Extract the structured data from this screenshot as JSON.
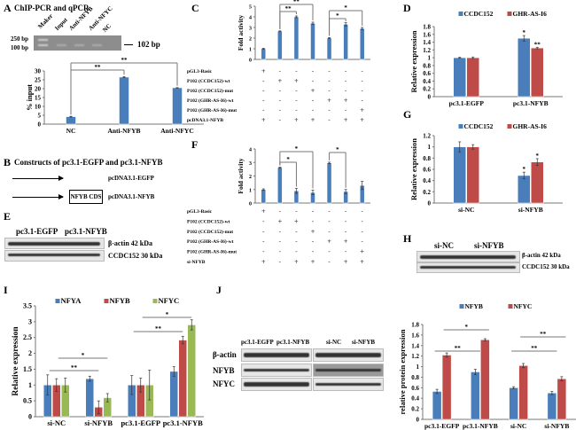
{
  "colors": {
    "blue": "#4a7ebb",
    "red": "#be4b48",
    "green": "#98b954"
  },
  "panels": {
    "A": {
      "letter": "A",
      "title": "ChIP-PCR and qPCR",
      "gel_lanes": [
        "Maker",
        "Input",
        "Anti-NFYB",
        "Anti-NFYC",
        "NC"
      ],
      "marker_250": "250 bp",
      "marker_100": "100 bp",
      "product": "102 bp"
    },
    "B": {
      "letter": "B",
      "title": "Constructs of pc3.1-EGFP and pc3.1-NFYB",
      "construct1": "pcDNA3.1-EGFP",
      "construct2": "pcDNA3.1-NFYB",
      "cds": "NFYB CDS"
    },
    "C": {
      "letter": "C"
    },
    "D": {
      "letter": "D"
    },
    "E": {
      "letter": "E",
      "group1": "pc3.1-EGFP",
      "group2": "pc3.1-NFYB",
      "row1": "β-actin 42 kDa",
      "row2": "CCDC152 30 kDa"
    },
    "F": {
      "letter": "F"
    },
    "G": {
      "letter": "G"
    },
    "H": {
      "letter": "H",
      "group1": "si-NC",
      "group2": "si-NFYB",
      "row1": "β-actin 42 kDa",
      "row2": "CCDC152 30 kDa"
    },
    "I": {
      "letter": "I"
    },
    "J": {
      "letter": "J",
      "group1": "pc3.1-EGFP",
      "group2": "pc3.1-NFYB",
      "group3": "si-NC",
      "group4": "si-NFYB",
      "row1": "β-actin",
      "row2": "NFYB",
      "row3": "NFYC"
    }
  },
  "chart_data": [
    {
      "id": "A",
      "type": "bar",
      "title": "",
      "xlabel": "",
      "ylabel": "% input",
      "ylim": [
        0,
        30
      ],
      "ystep": 5,
      "categories": [
        "NC",
        "Anti-NFYB",
        "Anti-NFYC"
      ],
      "series": [
        {
          "name": "",
          "color": "#4a7ebb",
          "values": [
            4.2,
            26.5,
            20.5
          ],
          "errors": [
            0.2,
            0.3,
            0.1
          ]
        }
      ],
      "significance": [
        {
          "from": 0,
          "to": 1,
          "label": "**"
        },
        {
          "from": 0,
          "to": 2,
          "label": "**"
        }
      ]
    },
    {
      "id": "C",
      "type": "bar",
      "ylabel": "Fold activity",
      "ylim": [
        0,
        5
      ],
      "ystep": 1,
      "categories": [
        "1",
        "2",
        "3",
        "4",
        "5",
        "6",
        "7"
      ],
      "series": [
        {
          "name": "",
          "color": "#4a7ebb",
          "values": [
            1.0,
            2.65,
            4.0,
            3.4,
            2.0,
            3.3,
            2.9
          ],
          "errors": [
            0.05,
            0.03,
            0.08,
            0.1,
            0.05,
            0.15,
            0.1
          ]
        }
      ],
      "significance": [
        {
          "from": 1,
          "to": 2,
          "label": "**"
        },
        {
          "from": 1,
          "to": 3,
          "label": "**"
        },
        {
          "from": 4,
          "to": 5,
          "label": "*"
        },
        {
          "from": 4,
          "to": 6,
          "label": "*"
        }
      ],
      "table": [
        {
          "label": "pGL3-Basic",
          "cells": [
            "+",
            "-",
            "-",
            "-",
            "-",
            "-",
            "-"
          ]
        },
        {
          "label": "P102 (CCDC152)-wt",
          "cells": [
            "-",
            "+",
            "+",
            "-",
            "-",
            "-",
            "-"
          ]
        },
        {
          "label": "P102 (CCDC152)-mut",
          "cells": [
            "-",
            "-",
            "-",
            "+",
            "-",
            "-",
            "-"
          ]
        },
        {
          "label": "P102 (GHR-AS-I6)-wt",
          "cells": [
            "-",
            "-",
            "-",
            "-",
            "+",
            "+",
            "-"
          ]
        },
        {
          "label": "P102 (GHR-AS-I6)-mut",
          "cells": [
            "-",
            "-",
            "-",
            "-",
            "-",
            "-",
            "+"
          ]
        },
        {
          "label": "pcDNA3.1-NFYB",
          "cells": [
            "+",
            "-",
            "+",
            "+",
            "-",
            "+",
            "+"
          ]
        }
      ]
    },
    {
      "id": "F",
      "type": "bar",
      "ylabel": "Fold activity",
      "ylim": [
        0,
        4
      ],
      "ystep": 1,
      "categories": [
        "1",
        "2",
        "3",
        "4",
        "5",
        "6",
        "7"
      ],
      "series": [
        {
          "name": "",
          "color": "#4a7ebb",
          "values": [
            1.0,
            2.62,
            0.9,
            0.78,
            2.97,
            0.85,
            1.3
          ],
          "errors": [
            0.05,
            0.03,
            0.18,
            0.17,
            0.05,
            0.15,
            0.3
          ]
        }
      ],
      "significance": [
        {
          "from": 1,
          "to": 2,
          "label": "*"
        },
        {
          "from": 1,
          "to": 3,
          "label": "*"
        },
        {
          "from": 4,
          "to": 5,
          "label": "*"
        }
      ],
      "table": [
        {
          "label": "pGL3-Basic",
          "cells": [
            "+",
            "-",
            "-",
            "-",
            "-",
            "-",
            "-"
          ]
        },
        {
          "label": "P102 (CCDC152)-wt",
          "cells": [
            "-",
            "+",
            "+",
            "-",
            "-",
            "-",
            "-"
          ]
        },
        {
          "label": "P102 (CCDC152)-mut",
          "cells": [
            "-",
            "-",
            "-",
            "+",
            "-",
            "-",
            "-"
          ]
        },
        {
          "label": "P102 (GHR-AS-I6)-wt",
          "cells": [
            "-",
            "-",
            "-",
            "-",
            "+",
            "+",
            "-"
          ]
        },
        {
          "label": "P102 (GHR-AS-I6)-mut",
          "cells": [
            "-",
            "-",
            "-",
            "-",
            "-",
            "-",
            "+"
          ]
        },
        {
          "label": "si-NFYB",
          "cells": [
            "+",
            "-",
            "+",
            "+",
            "-",
            "+",
            "+"
          ]
        }
      ]
    },
    {
      "id": "D",
      "type": "bar",
      "ylabel": "Relative expression",
      "ylim": [
        0,
        1.8
      ],
      "ystep": 0.2,
      "legend": "top",
      "categories": [
        "pc3.1-EGFP",
        "pc3.1-NFYB"
      ],
      "series": [
        {
          "name": "CCDC152",
          "color": "#4a7ebb",
          "values": [
            1.0,
            1.5
          ],
          "errors": [
            0.01,
            0.07
          ],
          "marks": [
            "",
            "*"
          ]
        },
        {
          "name": "GHR-AS-I6",
          "color": "#be4b48",
          "values": [
            1.0,
            1.25
          ],
          "errors": [
            0.02,
            0.02
          ],
          "marks": [
            "",
            "**"
          ]
        }
      ]
    },
    {
      "id": "G",
      "type": "bar",
      "ylabel": "Relative expression",
      "ylim": [
        0,
        1.2
      ],
      "ystep": 0.2,
      "legend": "top",
      "categories": [
        "si-NC",
        "si-NFYB"
      ],
      "series": [
        {
          "name": "CCDC152",
          "color": "#4a7ebb",
          "values": [
            1.0,
            0.49
          ],
          "errors": [
            0.09,
            0.06
          ],
          "marks": [
            "",
            "*"
          ]
        },
        {
          "name": "GHR-AS-I6",
          "color": "#be4b48",
          "values": [
            1.0,
            0.73
          ],
          "errors": [
            0.04,
            0.06
          ],
          "marks": [
            "",
            "*"
          ]
        }
      ]
    },
    {
      "id": "I",
      "type": "bar",
      "ylabel": "Relative expression",
      "ylim": [
        0,
        3.5
      ],
      "ystep": 0.5,
      "legend": "top",
      "categories": [
        "si-NC",
        "si-NFYB",
        "pc3.1-EGFP",
        "pc3.1-NFYB"
      ],
      "series": [
        {
          "name": "NFYA",
          "color": "#4a7ebb",
          "values": [
            1.0,
            1.2,
            1.0,
            1.43
          ],
          "errors": [
            0.32,
            0.08,
            0.3,
            0.15
          ]
        },
        {
          "name": "NFYB",
          "color": "#be4b48",
          "values": [
            1.0,
            0.3,
            1.0,
            2.42
          ],
          "errors": [
            0.2,
            0.2,
            0.22,
            0.12
          ]
        },
        {
          "name": "NFYC",
          "color": "#98b954",
          "values": [
            1.0,
            0.6,
            1.0,
            2.9
          ],
          "errors": [
            0.22,
            0.13,
            0.47,
            0.16
          ]
        }
      ],
      "significance": [
        {
          "from": 0,
          "to": 1,
          "label": "**"
        },
        {
          "from": 0,
          "to": 1,
          "label": "*"
        },
        {
          "from": 2,
          "to": 3,
          "label": "**"
        },
        {
          "from": 2,
          "to": 3,
          "label": "*"
        }
      ]
    },
    {
      "id": "J",
      "type": "bar",
      "ylabel": "relative protein expression",
      "ylim": [
        0,
        1.8
      ],
      "ystep": 0.2,
      "legend": "top",
      "categories": [
        "pc3.1-EGFP",
        "pc3.1-NFYB",
        "si-NC",
        "si-NFYB"
      ],
      "series": [
        {
          "name": "NFYB",
          "color": "#4a7ebb",
          "values": [
            0.53,
            0.9,
            0.6,
            0.5
          ],
          "errors": [
            0.04,
            0.05,
            0.02,
            0.03
          ]
        },
        {
          "name": "NFYC",
          "color": "#be4b48",
          "values": [
            1.22,
            1.51,
            1.02,
            0.77
          ],
          "errors": [
            0.04,
            0.02,
            0.04,
            0.04
          ]
        }
      ],
      "significance": [
        {
          "from": 0,
          "to": 1,
          "label": "**"
        },
        {
          "from": 0,
          "to": 1,
          "label": "*"
        },
        {
          "from": 2,
          "to": 3,
          "label": "**"
        },
        {
          "from": 2,
          "to": 3,
          "label": "**"
        }
      ]
    }
  ]
}
